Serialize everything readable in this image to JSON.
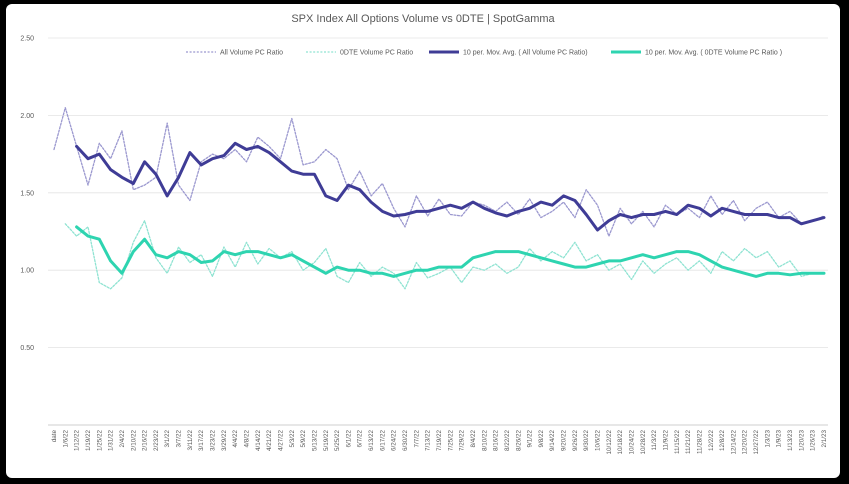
{
  "chart_data": {
    "type": "line",
    "title": "SPX Index All Options Volume vs 0DTE | SpotGamma",
    "xlabel": "",
    "ylabel": "",
    "ylim": [
      0,
      2.5
    ],
    "yticks": [
      "2.50",
      "2.00",
      "1.50",
      "1.00",
      "0.50"
    ],
    "grid": "horizontal",
    "legend": "top",
    "categories": [
      "date",
      "1/6/22",
      "1/12/22",
      "1/19/22",
      "1/25/22",
      "1/31/22",
      "2/4/22",
      "2/10/22",
      "2/16/22",
      "2/23/22",
      "3/1/22",
      "3/7/22",
      "3/11/22",
      "3/17/22",
      "3/23/22",
      "3/29/22",
      "4/4/22",
      "4/8/22",
      "4/14/22",
      "4/21/22",
      "4/27/22",
      "5/3/22",
      "5/9/22",
      "5/13/22",
      "5/19/22",
      "5/25/22",
      "6/1/22",
      "6/7/22",
      "6/13/22",
      "6/17/22",
      "6/24/22",
      "6/30/22",
      "7/7/22",
      "7/13/22",
      "7/19/22",
      "7/25/22",
      "7/29/22",
      "8/4/22",
      "8/10/22",
      "8/16/22",
      "8/22/22",
      "8/26/22",
      "9/1/22",
      "9/8/22",
      "9/14/22",
      "9/20/22",
      "9/26/22",
      "9/30/22",
      "10/6/22",
      "10/12/22",
      "10/18/22",
      "10/24/22",
      "10/28/22",
      "11/3/22",
      "11/9/22",
      "11/15/22",
      "11/21/22",
      "11/28/22",
      "12/2/22",
      "12/8/22",
      "12/14/22",
      "12/20/22",
      "12/27/22",
      "1/3/23",
      "1/9/23",
      "1/13/23",
      "1/20/23",
      "1/26/23",
      "2/1/23"
    ],
    "series": [
      {
        "name": "All Volume PC Ratio",
        "color": "#9b98cf",
        "style": "dotted",
        "values": [
          1.78,
          2.05,
          1.8,
          1.55,
          1.82,
          1.72,
          1.9,
          1.52,
          1.55,
          1.6,
          1.95,
          1.55,
          1.45,
          1.7,
          1.75,
          1.72,
          1.78,
          1.7,
          1.86,
          1.8,
          1.72,
          1.98,
          1.68,
          1.7,
          1.78,
          1.72,
          1.52,
          1.64,
          1.48,
          1.56,
          1.4,
          1.28,
          1.48,
          1.35,
          1.46,
          1.36,
          1.35,
          1.44,
          1.42,
          1.38,
          1.44,
          1.36,
          1.46,
          1.34,
          1.38,
          1.44,
          1.34,
          1.52,
          1.42,
          1.22,
          1.4,
          1.3,
          1.38,
          1.28,
          1.42,
          1.36,
          1.4,
          1.34,
          1.48,
          1.36,
          1.45,
          1.32,
          1.4,
          1.44,
          1.34,
          1.38,
          1.3,
          1.32,
          1.35
        ]
      },
      {
        "name": "0DTE Volume PC Ratio",
        "color": "#8fe3d2",
        "style": "dotted",
        "values": [
          null,
          1.3,
          1.22,
          1.28,
          0.92,
          0.88,
          0.95,
          1.18,
          1.32,
          1.08,
          0.98,
          1.15,
          1.05,
          1.1,
          0.96,
          1.15,
          1.02,
          1.18,
          1.04,
          1.14,
          1.08,
          1.12,
          1.0,
          1.05,
          1.14,
          0.96,
          0.92,
          1.05,
          0.96,
          1.02,
          0.98,
          0.88,
          1.05,
          0.95,
          0.98,
          1.02,
          0.92,
          1.02,
          1.0,
          1.04,
          0.98,
          1.02,
          1.14,
          1.06,
          1.12,
          1.08,
          1.18,
          1.06,
          1.1,
          1.0,
          1.04,
          0.94,
          1.06,
          0.98,
          1.04,
          1.08,
          1.0,
          1.06,
          0.98,
          1.12,
          1.06,
          1.14,
          1.08,
          1.12,
          1.02,
          1.06,
          0.96,
          0.98,
          0.98
        ]
      },
      {
        "name": "10 per. Mov. Avg. ( All Volume PC Ratio)",
        "color": "#3f3c96",
        "style": "solid",
        "values": [
          null,
          null,
          1.8,
          1.72,
          1.75,
          1.65,
          1.6,
          1.56,
          1.7,
          1.62,
          1.48,
          1.6,
          1.76,
          1.68,
          1.72,
          1.74,
          1.82,
          1.78,
          1.8,
          1.76,
          1.7,
          1.64,
          1.62,
          1.62,
          1.48,
          1.45,
          1.55,
          1.52,
          1.44,
          1.38,
          1.35,
          1.36,
          1.38,
          1.38,
          1.4,
          1.42,
          1.4,
          1.44,
          1.4,
          1.37,
          1.35,
          1.38,
          1.4,
          1.44,
          1.42,
          1.48,
          1.45,
          1.36,
          1.26,
          1.32,
          1.36,
          1.34,
          1.36,
          1.36,
          1.38,
          1.36,
          1.42,
          1.4,
          1.35,
          1.4,
          1.38,
          1.36,
          1.36,
          1.36,
          1.34,
          1.34,
          1.3,
          1.32,
          1.34
        ]
      },
      {
        "name": "10 per. Mov. Avg. ( 0DTE Volume PC Ratio )",
        "color": "#2ed4b0",
        "style": "solid",
        "values": [
          null,
          null,
          1.28,
          1.22,
          1.2,
          1.06,
          0.98,
          1.12,
          1.2,
          1.1,
          1.08,
          1.12,
          1.1,
          1.05,
          1.06,
          1.12,
          1.1,
          1.12,
          1.12,
          1.1,
          1.08,
          1.1,
          1.06,
          1.02,
          0.98,
          1.02,
          1.0,
          1.0,
          0.98,
          0.98,
          0.96,
          0.98,
          1.0,
          1.0,
          1.02,
          1.02,
          1.02,
          1.08,
          1.1,
          1.12,
          1.12,
          1.12,
          1.1,
          1.08,
          1.06,
          1.04,
          1.02,
          1.02,
          1.04,
          1.06,
          1.06,
          1.08,
          1.1,
          1.08,
          1.1,
          1.12,
          1.12,
          1.1,
          1.06,
          1.02,
          1.0,
          0.98,
          0.96,
          0.98,
          0.98,
          0.97,
          0.98,
          0.98,
          0.98
        ]
      }
    ]
  }
}
